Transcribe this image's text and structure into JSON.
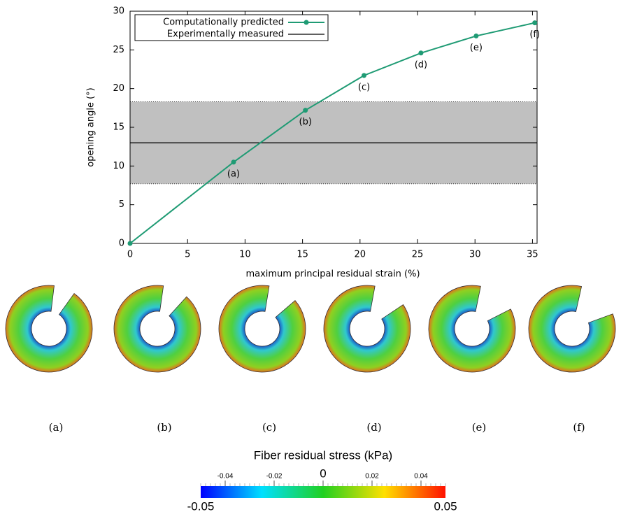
{
  "chart_data": {
    "type": "line",
    "x_label": "maximum principal residual strain (%)",
    "y_label": "opening angle (°)",
    "series": [
      {
        "name": "Computationally predicted",
        "color": "#1f9b74",
        "x": [
          0,
          9.0,
          15.25,
          20.35,
          25.3,
          30.1,
          35.2
        ],
        "values": [
          0,
          10.5,
          17.2,
          21.7,
          24.6,
          26.8,
          28.5
        ],
        "point_labels": [
          null,
          "(a)",
          "(b)",
          "(c)",
          "(d)",
          "(e)",
          "(f)"
        ]
      }
    ],
    "reference": {
      "name": "Experimentally measured",
      "color": "#000000",
      "value": 13,
      "range": [
        7.7,
        18.3
      ],
      "band_color": "#c0c0c0"
    },
    "xlim": [
      0,
      35.4
    ],
    "ylim": [
      0,
      30
    ],
    "xticks": [
      0,
      5,
      10,
      15,
      20,
      25,
      30,
      35
    ],
    "yticks": [
      0,
      5,
      10,
      15,
      20,
      25,
      30
    ],
    "legend": "upper-left"
  },
  "panels": [
    "(a)",
    "(b)",
    "(c)",
    "(d)",
    "(e)",
    "(f)"
  ],
  "colorbar": {
    "title": "Fiber residual stress (kPa)",
    "min": -0.05,
    "max": 0.05,
    "ticks": [
      -0.04,
      -0.02,
      0,
      0.02,
      0.04
    ]
  }
}
